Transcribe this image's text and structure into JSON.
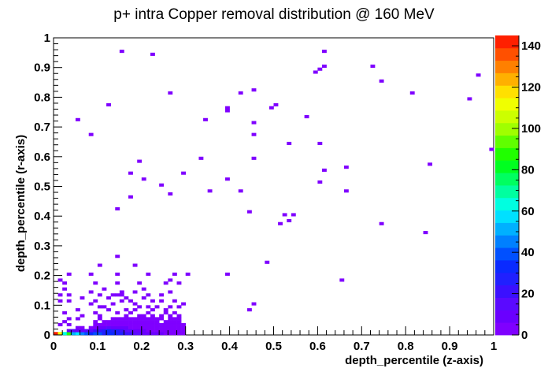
{
  "chart_data": {
    "type": "heatmap",
    "title": "p+ intra Copper removal distribution @ 160 MeV",
    "xlabel": "depth_percentile (z-axis)",
    "ylabel": "depth_percentile (r-axis)",
    "xlim": [
      0,
      1
    ],
    "ylim": [
      0,
      1
    ],
    "x_ticks": [
      "0",
      "0.1",
      "0.2",
      "0.3",
      "0.4",
      "0.5",
      "0.6",
      "0.7",
      "0.8",
      "0.9",
      "1"
    ],
    "y_ticks": [
      "0",
      "0.1",
      "0.2",
      "0.3",
      "0.4",
      "0.5",
      "0.6",
      "0.7",
      "0.8",
      "0.9",
      "1"
    ],
    "zlim": [
      0,
      145
    ],
    "z_ticks": [
      "0",
      "20",
      "40",
      "60",
      "80",
      "100",
      "120",
      "140"
    ],
    "bins": 100,
    "palette": [
      "#7f00ff",
      "#6a00ff",
      "#5a0aff",
      "#3b10ff",
      "#2020ff",
      "#0a2aff",
      "#0050ff",
      "#0080ff",
      "#00b0ff",
      "#00e0ff",
      "#00ffe0",
      "#00ffa0",
      "#00ff60",
      "#00ff20",
      "#20ff00",
      "#60ff00",
      "#a0ff00",
      "#ccff00",
      "#f0ff00",
      "#ffe000",
      "#ffb000",
      "#ff8000",
      "#ff5000",
      "#ff2000"
    ],
    "cells": [
      [
        0,
        0,
        140
      ],
      [
        1,
        0,
        110
      ],
      [
        2,
        0,
        65
      ],
      [
        3,
        0,
        85
      ],
      [
        4,
        0,
        50
      ],
      [
        5,
        0,
        58
      ],
      [
        6,
        0,
        45
      ],
      [
        7,
        0,
        40
      ],
      [
        8,
        0,
        35
      ],
      [
        9,
        0,
        42
      ],
      [
        10,
        0,
        38
      ],
      [
        11,
        0,
        30
      ],
      [
        12,
        0,
        32
      ],
      [
        13,
        0,
        35
      ],
      [
        14,
        0,
        28
      ],
      [
        15,
        0,
        26
      ],
      [
        16,
        0,
        22
      ],
      [
        17,
        0,
        20
      ],
      [
        18,
        0,
        18
      ],
      [
        19,
        0,
        15
      ],
      [
        20,
        0,
        12
      ],
      [
        21,
        0,
        10
      ],
      [
        22,
        0,
        9
      ],
      [
        23,
        0,
        8
      ],
      [
        24,
        0,
        7
      ],
      [
        25,
        0,
        6
      ],
      [
        26,
        0,
        5
      ],
      [
        27,
        0,
        4
      ],
      [
        28,
        0,
        3
      ],
      [
        29,
        0,
        2
      ],
      [
        3,
        1,
        12
      ],
      [
        4,
        1,
        14
      ],
      [
        5,
        1,
        8
      ],
      [
        6,
        1,
        10
      ],
      [
        7,
        1,
        18
      ],
      [
        8,
        1,
        15
      ],
      [
        9,
        1,
        20
      ],
      [
        10,
        1,
        22
      ],
      [
        11,
        1,
        30
      ],
      [
        12,
        1,
        35
      ],
      [
        13,
        1,
        28
      ],
      [
        14,
        1,
        25
      ],
      [
        15,
        1,
        22
      ],
      [
        16,
        1,
        18
      ],
      [
        17,
        1,
        14
      ],
      [
        18,
        1,
        12
      ],
      [
        19,
        1,
        10
      ],
      [
        20,
        1,
        8
      ],
      [
        21,
        1,
        6
      ],
      [
        22,
        1,
        5
      ],
      [
        23,
        1,
        4
      ],
      [
        24,
        1,
        3
      ],
      [
        25,
        1,
        2
      ],
      [
        26,
        1,
        2
      ],
      [
        27,
        1,
        1
      ],
      [
        28,
        1,
        1
      ],
      [
        29,
        1,
        1
      ],
      [
        5,
        2,
        3
      ],
      [
        6,
        2,
        4
      ],
      [
        8,
        2,
        5
      ],
      [
        9,
        2,
        6
      ],
      [
        10,
        2,
        8
      ],
      [
        11,
        2,
        10
      ],
      [
        12,
        2,
        16
      ],
      [
        13,
        2,
        12
      ],
      [
        14,
        2,
        12
      ],
      [
        15,
        2,
        9
      ],
      [
        16,
        2,
        7
      ],
      [
        17,
        2,
        6
      ],
      [
        18,
        2,
        5
      ],
      [
        19,
        2,
        4
      ],
      [
        20,
        2,
        3
      ],
      [
        21,
        2,
        3
      ],
      [
        22,
        2,
        2
      ],
      [
        23,
        2,
        2
      ],
      [
        24,
        2,
        1
      ],
      [
        25,
        2,
        1
      ],
      [
        26,
        2,
        1
      ],
      [
        27,
        2,
        1
      ],
      [
        28,
        2,
        1
      ],
      [
        29,
        2,
        1
      ],
      [
        1,
        3,
        1
      ],
      [
        3,
        3,
        1
      ],
      [
        9,
        3,
        2
      ],
      [
        10,
        3,
        2
      ],
      [
        11,
        3,
        3
      ],
      [
        12,
        3,
        3
      ],
      [
        13,
        3,
        4
      ],
      [
        14,
        3,
        5
      ],
      [
        15,
        3,
        3
      ],
      [
        16,
        3,
        3
      ],
      [
        17,
        3,
        4
      ],
      [
        18,
        3,
        2
      ],
      [
        19,
        3,
        3
      ],
      [
        20,
        3,
        2
      ],
      [
        21,
        3,
        2
      ],
      [
        22,
        3,
        2
      ],
      [
        23,
        3,
        1
      ],
      [
        24,
        3,
        1
      ],
      [
        25,
        3,
        1
      ],
      [
        26,
        3,
        1
      ],
      [
        27,
        3,
        1
      ],
      [
        28,
        3,
        1
      ],
      [
        29,
        3,
        1
      ],
      [
        2,
        4,
        1
      ],
      [
        9,
        4,
        1
      ],
      [
        11,
        4,
        1
      ],
      [
        12,
        4,
        1
      ],
      [
        13,
        4,
        2
      ],
      [
        14,
        4,
        1
      ],
      [
        15,
        4,
        1
      ],
      [
        16,
        4,
        2
      ],
      [
        17,
        4,
        1
      ],
      [
        18,
        4,
        1
      ],
      [
        19,
        4,
        2
      ],
      [
        20,
        4,
        1
      ],
      [
        21,
        4,
        1
      ],
      [
        22,
        4,
        1
      ],
      [
        23,
        4,
        1
      ],
      [
        25,
        4,
        1
      ],
      [
        26,
        4,
        1
      ],
      [
        27,
        4,
        1
      ],
      [
        28,
        4,
        1
      ],
      [
        3,
        5,
        1
      ],
      [
        5,
        5,
        1
      ],
      [
        10,
        5,
        1
      ],
      [
        13,
        5,
        1
      ],
      [
        14,
        5,
        1
      ],
      [
        15,
        5,
        1
      ],
      [
        16,
        5,
        1
      ],
      [
        17,
        5,
        1
      ],
      [
        18,
        5,
        1
      ],
      [
        19,
        5,
        1
      ],
      [
        20,
        5,
        1
      ],
      [
        21,
        5,
        1
      ],
      [
        22,
        5,
        1
      ],
      [
        23,
        5,
        1
      ],
      [
        24,
        5,
        1
      ],
      [
        26,
        5,
        1
      ],
      [
        27,
        5,
        1
      ],
      [
        28,
        5,
        1
      ],
      [
        6,
        6,
        1
      ],
      [
        10,
        6,
        1
      ],
      [
        16,
        6,
        1
      ],
      [
        19,
        6,
        1
      ],
      [
        20,
        6,
        1
      ],
      [
        22,
        6,
        1
      ],
      [
        24,
        6,
        1
      ],
      [
        26,
        6,
        1
      ],
      [
        28,
        6,
        1
      ],
      [
        2,
        7,
        1
      ],
      [
        9,
        7,
        1
      ],
      [
        14,
        7,
        1
      ],
      [
        17,
        7,
        1
      ],
      [
        21,
        7,
        1
      ],
      [
        25,
        7,
        1
      ],
      [
        27,
        7,
        1
      ],
      [
        5,
        8,
        1
      ],
      [
        12,
        8,
        1
      ],
      [
        16,
        8,
        1
      ],
      [
        18,
        8,
        1
      ],
      [
        22,
        8,
        1
      ],
      [
        25,
        8,
        1
      ],
      [
        44,
        8,
        1
      ],
      [
        10,
        9,
        1
      ],
      [
        11,
        9,
        1
      ],
      [
        19,
        9,
        1
      ],
      [
        21,
        9,
        1
      ],
      [
        23,
        9,
        1
      ],
      [
        26,
        9,
        1
      ],
      [
        28,
        9,
        1
      ],
      [
        8,
        10,
        1
      ],
      [
        13,
        10,
        1
      ],
      [
        18,
        10,
        1
      ],
      [
        29,
        10,
        1
      ],
      [
        45,
        10,
        1
      ],
      [
        1,
        11,
        1
      ],
      [
        3,
        11,
        1
      ],
      [
        9,
        11,
        1
      ],
      [
        15,
        11,
        1
      ],
      [
        17,
        11,
        1
      ],
      [
        22,
        11,
        1
      ],
      [
        24,
        11,
        1
      ],
      [
        27,
        11,
        1
      ],
      [
        6,
        12,
        1
      ],
      [
        12,
        12,
        1
      ],
      [
        16,
        12,
        1
      ],
      [
        20,
        12,
        1
      ],
      [
        1,
        13,
        1
      ],
      [
        3,
        13,
        1
      ],
      [
        10,
        13,
        1
      ],
      [
        13,
        13,
        1
      ],
      [
        14,
        13,
        1
      ],
      [
        15,
        13,
        1
      ],
      [
        21,
        13,
        1
      ],
      [
        24,
        13,
        1
      ],
      [
        8,
        14,
        1
      ],
      [
        15,
        14,
        1
      ],
      [
        18,
        14,
        1
      ],
      [
        26,
        14,
        1
      ],
      [
        2,
        15,
        1
      ],
      [
        11,
        15,
        1
      ],
      [
        20,
        15,
        1
      ],
      [
        2,
        17,
        1
      ],
      [
        9,
        17,
        1
      ],
      [
        14,
        17,
        1
      ],
      [
        19,
        17,
        1
      ],
      [
        25,
        17,
        1
      ],
      [
        28,
        17,
        1
      ],
      [
        1,
        18,
        1
      ],
      [
        26,
        18,
        1
      ],
      [
        65,
        18,
        1
      ],
      [
        3,
        20,
        1
      ],
      [
        8,
        20,
        1
      ],
      [
        14,
        20,
        1
      ],
      [
        21,
        20,
        1
      ],
      [
        27,
        20,
        1
      ],
      [
        30,
        20,
        1
      ],
      [
        39,
        20,
        1
      ],
      [
        10,
        23,
        1
      ],
      [
        18,
        23,
        1
      ],
      [
        48,
        24,
        1
      ],
      [
        14,
        26,
        1
      ],
      [
        51,
        37,
        1
      ],
      [
        74,
        37,
        1
      ],
      [
        84,
        34,
        1
      ],
      [
        53,
        38,
        1
      ],
      [
        52,
        40,
        1
      ],
      [
        54,
        40,
        1
      ],
      [
        44,
        41,
        1
      ],
      [
        14,
        42,
        1
      ],
      [
        17,
        46,
        1
      ],
      [
        26,
        47,
        1
      ],
      [
        35,
        48,
        1
      ],
      [
        42,
        48,
        1
      ],
      [
        66,
        48,
        1
      ],
      [
        24,
        50,
        1
      ],
      [
        60,
        51,
        1
      ],
      [
        20,
        52,
        1
      ],
      [
        39,
        52,
        1
      ],
      [
        17,
        54,
        1
      ],
      [
        29,
        54,
        1
      ],
      [
        61,
        55,
        1
      ],
      [
        66,
        56,
        1
      ],
      [
        85,
        57,
        1
      ],
      [
        19,
        58,
        1
      ],
      [
        33,
        59,
        1
      ],
      [
        45,
        59,
        1
      ],
      [
        99,
        62,
        1
      ],
      [
        53,
        64,
        1
      ],
      [
        60,
        64,
        1
      ],
      [
        45,
        67,
        1
      ],
      [
        8,
        67,
        1
      ],
      [
        5,
        72,
        1
      ],
      [
        34,
        72,
        1
      ],
      [
        45,
        71,
        1
      ],
      [
        12,
        77,
        1
      ],
      [
        49,
        76,
        1
      ],
      [
        50,
        77,
        1
      ],
      [
        57,
        73,
        1
      ],
      [
        39,
        75,
        1
      ],
      [
        39,
        76,
        1
      ],
      [
        26,
        81,
        1
      ],
      [
        42,
        81,
        1
      ],
      [
        45,
        82,
        1
      ],
      [
        81,
        81,
        1
      ],
      [
        94,
        79,
        1
      ],
      [
        74,
        85,
        1
      ],
      [
        59,
        88,
        1
      ],
      [
        60,
        89,
        1
      ],
      [
        61,
        90,
        1
      ],
      [
        96,
        87,
        1
      ],
      [
        72,
        90,
        1
      ],
      [
        61,
        95,
        1
      ],
      [
        15,
        95,
        1
      ],
      [
        22,
        94,
        1
      ]
    ]
  }
}
